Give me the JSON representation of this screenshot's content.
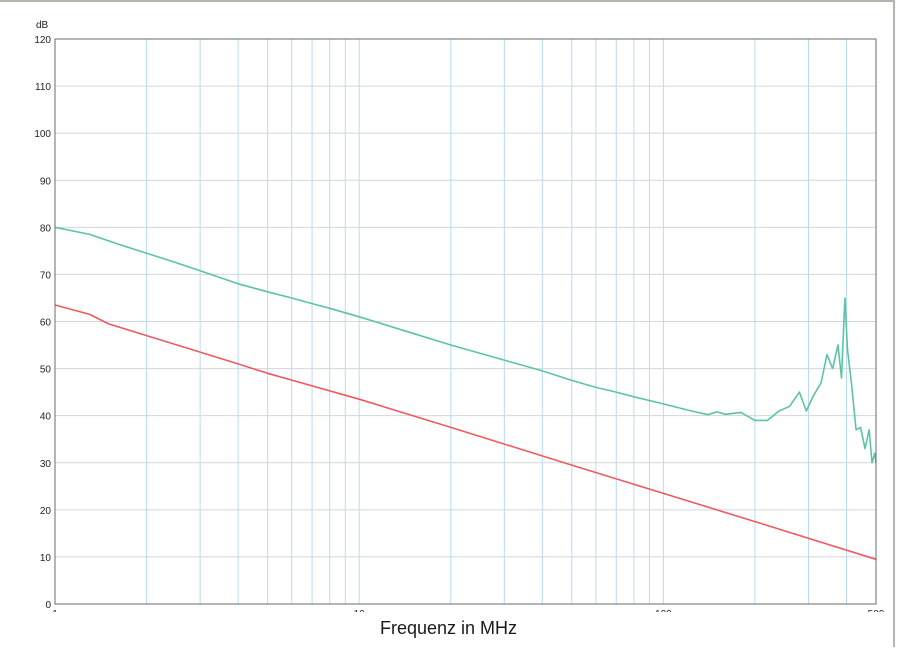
{
  "chart_data": {
    "type": "line",
    "xlabel": "Frequenz in MHz",
    "ylabel": "dB",
    "x_scale": "log",
    "xlim": [
      1,
      500
    ],
    "ylim": [
      0,
      120
    ],
    "x_ticks": [
      1,
      10,
      100,
      500
    ],
    "x_tick_labels": [
      "1",
      "10",
      "100",
      "500"
    ],
    "x_minor_grid": [
      2,
      3,
      4,
      5,
      6,
      7,
      8,
      9,
      20,
      30,
      40,
      50,
      60,
      70,
      80,
      90,
      200,
      300,
      400
    ],
    "y_ticks": [
      0,
      10,
      20,
      30,
      40,
      50,
      60,
      70,
      80,
      90,
      100,
      110,
      120
    ],
    "y_tick_labels": [
      "0",
      "10",
      "20",
      "30",
      "40",
      "50",
      "60",
      "70",
      "80",
      "90",
      "100",
      "110",
      "120"
    ],
    "grid": true,
    "series": [
      {
        "color": "#5cc4a6",
        "points": [
          [
            1,
            80
          ],
          [
            1.3,
            78.5
          ],
          [
            1.6,
            76.5
          ],
          [
            2,
            74.5
          ],
          [
            2.5,
            72.5
          ],
          [
            3,
            70.8
          ],
          [
            4,
            68
          ],
          [
            5,
            66.3
          ],
          [
            6,
            65
          ],
          [
            7,
            63.8
          ],
          [
            8,
            62.8
          ],
          [
            10,
            61
          ],
          [
            15,
            57.5
          ],
          [
            20,
            55
          ],
          [
            30,
            51.8
          ],
          [
            40,
            49.5
          ],
          [
            50,
            47.5
          ],
          [
            60,
            46
          ],
          [
            70,
            45
          ],
          [
            80,
            44
          ],
          [
            100,
            42.5
          ],
          [
            120,
            41.2
          ],
          [
            140,
            40.2
          ],
          [
            150,
            40.8
          ],
          [
            160,
            40.3
          ],
          [
            180,
            40.7
          ],
          [
            200,
            39
          ],
          [
            220,
            39
          ],
          [
            240,
            41
          ],
          [
            260,
            42
          ],
          [
            280,
            45
          ],
          [
            295,
            41
          ],
          [
            310,
            44
          ],
          [
            330,
            47
          ],
          [
            345,
            53
          ],
          [
            360,
            50
          ],
          [
            375,
            55
          ],
          [
            385,
            48
          ],
          [
            395,
            65
          ],
          [
            403,
            54
          ],
          [
            415,
            47
          ],
          [
            430,
            37
          ],
          [
            445,
            37.5
          ],
          [
            460,
            33
          ],
          [
            475,
            37
          ],
          [
            485,
            30
          ],
          [
            495,
            32
          ],
          [
            500,
            30
          ]
        ]
      },
      {
        "color": "#ee5a5e",
        "points": [
          [
            1,
            63.5
          ],
          [
            1.3,
            61.5
          ],
          [
            1.5,
            59.5
          ],
          [
            2,
            57
          ],
          [
            3,
            53.5
          ],
          [
            4,
            51
          ],
          [
            5,
            49
          ],
          [
            10,
            43.5
          ],
          [
            20,
            37.5
          ],
          [
            50,
            29.5
          ],
          [
            100,
            23.5
          ],
          [
            200,
            17.5
          ],
          [
            500,
            9.5
          ]
        ]
      }
    ]
  }
}
